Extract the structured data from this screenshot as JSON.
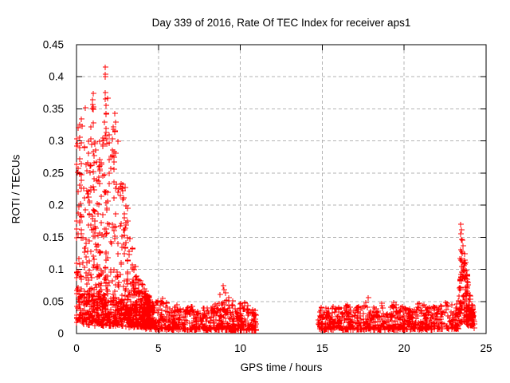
{
  "chart_data": {
    "type": "scatter",
    "title": "Day 339 of 2016, Rate Of TEC Index for receiver aps1",
    "xlabel": "GPS time / hours",
    "ylabel": "ROTI / TECUs",
    "xlim": [
      0,
      25
    ],
    "ylim": [
      0,
      0.45
    ],
    "xticks": [
      0,
      5,
      10,
      15,
      20,
      25
    ],
    "yticks": [
      0,
      0.05,
      0.1,
      0.15,
      0.2,
      0.25,
      0.3,
      0.35,
      0.4,
      0.45
    ],
    "grid": true,
    "legend": "none",
    "marker": "plus",
    "marker_size_px": 7,
    "marker_color": "#ff0000",
    "grid_color": "#b3b3b3",
    "axis_color": "#000000",
    "background": "#ffffff",
    "seed": 20160339,
    "data_gap_hours": [
      11.0,
      14.7
    ],
    "notable_points": [
      [
        1.75,
        0.415
      ],
      [
        1.76,
        0.404
      ],
      [
        1.77,
        0.4
      ],
      [
        1.73,
        0.375
      ],
      [
        1.76,
        0.366
      ],
      [
        1.0,
        0.374
      ],
      [
        1.02,
        0.353
      ],
      [
        1.03,
        0.328
      ],
      [
        0.55,
        0.352
      ],
      [
        0.3,
        0.334
      ],
      [
        0.12,
        0.321
      ],
      [
        0.2,
        0.306
      ],
      [
        0.05,
        0.296
      ],
      [
        2.35,
        0.343
      ],
      [
        2.36,
        0.329
      ],
      [
        2.34,
        0.315
      ],
      [
        2.55,
        0.3
      ],
      [
        1.4,
        0.3
      ],
      [
        0.75,
        0.3
      ],
      [
        2.8,
        0.232
      ],
      [
        2.95,
        0.228
      ],
      [
        8.75,
        0.061
      ],
      [
        8.95,
        0.074
      ],
      [
        9.0,
        0.068
      ],
      [
        9.1,
        0.063
      ],
      [
        9.3,
        0.056
      ],
      [
        9.15,
        0.052
      ],
      [
        17.8,
        0.056
      ],
      [
        23.45,
        0.17
      ],
      [
        23.47,
        0.161
      ],
      [
        23.44,
        0.155
      ],
      [
        23.5,
        0.147
      ],
      [
        23.55,
        0.145
      ],
      [
        23.42,
        0.131
      ],
      [
        23.47,
        0.128
      ],
      [
        23.52,
        0.125
      ],
      [
        23.4,
        0.117
      ],
      [
        23.46,
        0.114
      ],
      [
        23.56,
        0.112
      ],
      [
        23.5,
        0.105
      ],
      [
        23.58,
        0.102
      ],
      [
        23.6,
        0.098
      ]
    ],
    "clusters": [
      {
        "name": "morning-storm-high-activity",
        "t0": 0.0,
        "t1": 4.6,
        "n": 720,
        "p": 1.55,
        "col_w": 0.1,
        "env_max": [
          [
            0,
            0.31
          ],
          [
            0.15,
            0.33
          ],
          [
            0.3,
            0.34
          ],
          [
            0.45,
            0.3
          ],
          [
            0.6,
            0.27
          ],
          [
            0.8,
            0.31
          ],
          [
            1.0,
            0.37
          ],
          [
            1.15,
            0.3
          ],
          [
            1.3,
            0.26
          ],
          [
            1.5,
            0.29
          ],
          [
            1.7,
            0.33
          ],
          [
            1.8,
            0.4
          ],
          [
            1.95,
            0.37
          ],
          [
            2.1,
            0.3
          ],
          [
            2.3,
            0.34
          ],
          [
            2.5,
            0.27
          ],
          [
            2.7,
            0.235
          ],
          [
            2.9,
            0.23
          ],
          [
            3.1,
            0.2
          ],
          [
            3.3,
            0.16
          ],
          [
            3.5,
            0.13
          ],
          [
            3.7,
            0.1
          ],
          [
            3.9,
            0.085
          ],
          [
            4.2,
            0.068
          ],
          [
            4.6,
            0.052
          ]
        ],
        "env_min": [
          [
            0,
            0.02
          ],
          [
            2.0,
            0.015
          ],
          [
            3.0,
            0.012
          ],
          [
            4.6,
            0.009
          ]
        ]
      },
      {
        "name": "morning-storm-dense-floor",
        "t0": 0.0,
        "t1": 4.6,
        "n": 320,
        "p": 1.1,
        "col_w": 0.07,
        "env_max": [
          [
            0,
            0.075
          ],
          [
            1.0,
            0.065
          ],
          [
            2.0,
            0.06
          ],
          [
            3.0,
            0.05
          ],
          [
            4.6,
            0.04
          ]
        ],
        "env_min": [
          [
            0,
            0.014
          ],
          [
            4.6,
            0.008
          ]
        ]
      },
      {
        "name": "midday-quiet-band",
        "t0": 4.2,
        "t1": 10.98,
        "n": 620,
        "p": 1.8,
        "col_w": 0.05,
        "env_max": [
          [
            4.2,
            0.062
          ],
          [
            4.8,
            0.05
          ],
          [
            5.3,
            0.056
          ],
          [
            5.8,
            0.04
          ],
          [
            6.3,
            0.048
          ],
          [
            6.8,
            0.042
          ],
          [
            7.3,
            0.046
          ],
          [
            7.8,
            0.04
          ],
          [
            8.3,
            0.044
          ],
          [
            8.7,
            0.05
          ],
          [
            9.0,
            0.055
          ],
          [
            9.4,
            0.05
          ],
          [
            9.8,
            0.053
          ],
          [
            10.2,
            0.05
          ],
          [
            10.6,
            0.042
          ],
          [
            10.98,
            0.04
          ]
        ],
        "env_min": [
          [
            4.2,
            0.007
          ],
          [
            10.98,
            0.005
          ]
        ]
      },
      {
        "name": "evening-quiet-band",
        "t0": 14.72,
        "t1": 23.3,
        "n": 720,
        "p": 1.8,
        "col_w": 0.05,
        "env_max": [
          [
            14.72,
            0.032
          ],
          [
            15.0,
            0.046
          ],
          [
            15.4,
            0.038
          ],
          [
            15.8,
            0.048
          ],
          [
            16.2,
            0.04
          ],
          [
            16.6,
            0.048
          ],
          [
            17.0,
            0.04
          ],
          [
            17.4,
            0.046
          ],
          [
            17.8,
            0.05
          ],
          [
            18.2,
            0.042
          ],
          [
            18.6,
            0.048
          ],
          [
            19.0,
            0.044
          ],
          [
            19.4,
            0.05
          ],
          [
            19.8,
            0.042
          ],
          [
            20.2,
            0.048
          ],
          [
            20.6,
            0.042
          ],
          [
            21.0,
            0.05
          ],
          [
            21.4,
            0.044
          ],
          [
            21.8,
            0.05
          ],
          [
            22.2,
            0.044
          ],
          [
            22.6,
            0.05
          ],
          [
            23.0,
            0.046
          ],
          [
            23.3,
            0.052
          ]
        ],
        "env_min": [
          [
            14.72,
            0.006
          ],
          [
            23.3,
            0.007
          ]
        ]
      },
      {
        "name": "end-of-day-spike",
        "t0": 23.3,
        "t1": 24.25,
        "n": 170,
        "p": 1.35,
        "col_w": 0.04,
        "env_max": [
          [
            23.3,
            0.06
          ],
          [
            23.45,
            0.11
          ],
          [
            23.6,
            0.145
          ],
          [
            23.7,
            0.12
          ],
          [
            23.8,
            0.1
          ],
          [
            23.9,
            0.075
          ],
          [
            24.05,
            0.055
          ],
          [
            24.25,
            0.04
          ]
        ],
        "env_min": [
          [
            23.3,
            0.008
          ],
          [
            23.6,
            0.02
          ],
          [
            23.8,
            0.015
          ],
          [
            24.25,
            0.008
          ]
        ]
      }
    ]
  }
}
